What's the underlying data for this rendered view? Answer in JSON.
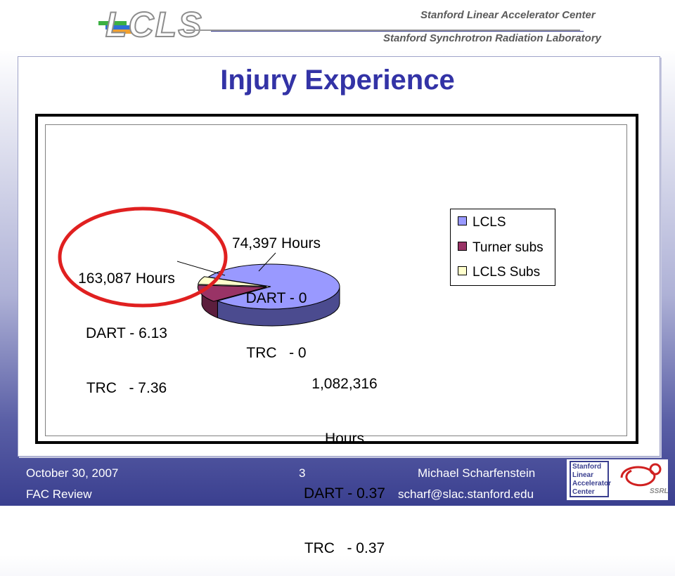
{
  "header": {
    "logo": "LCLS",
    "org_line1": "Stanford Linear Accelerator Center",
    "org_line2": "Stanford Synchrotron Radiation Laboratory"
  },
  "slide": {
    "title": "Injury Experience"
  },
  "chart_data": {
    "type": "pie",
    "categories": [
      "LCLS",
      "Turner subs",
      "LCLS Subs"
    ],
    "values": [
      1082316,
      163087,
      74397
    ],
    "unit": "Hours",
    "labels": {
      "lcls": [
        "1,082,316",
        "Hours",
        "DART - 0.37",
        "TRC   - 0.37"
      ],
      "turner": [
        "163,087 Hours",
        "DART - 6.13",
        "TRC   - 7.36"
      ],
      "lcls_subs": [
        "74,397 Hours",
        "DART - 0",
        "TRC   - 0"
      ]
    },
    "legend": [
      "LCLS",
      "Turner subs",
      "LCLS Subs"
    ],
    "legend_position": "right",
    "colors": {
      "LCLS": "#9999ff",
      "Turner subs": "#993366",
      "LCLS Subs": "#ffffcc",
      "highlight_circle": "#e02020"
    }
  },
  "footer": {
    "date": "October 30, 2007",
    "event": "FAC Review",
    "page": "3",
    "presenter": "Michael Scharfenstein",
    "email": "scharf@slac.stanford.edu",
    "slac_logo": [
      "Stanford",
      "Linear",
      "Accelerator",
      "Center"
    ],
    "ssrl_logo": "SSRL"
  }
}
